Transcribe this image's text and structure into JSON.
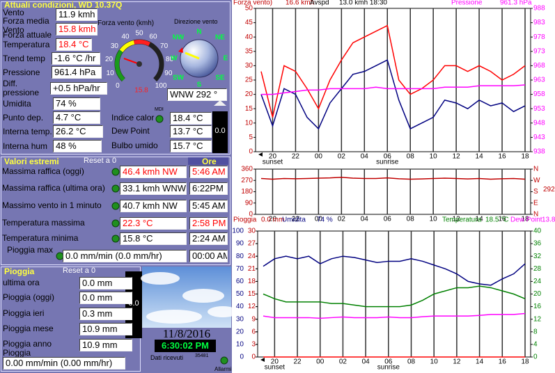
{
  "current": {
    "title": "Attuali condizioni, WD 10.37Q",
    "labels": [
      "Vento",
      "Forza media Vento",
      "Forza attuale",
      "Temperatura",
      "Trend temp",
      "Pressione",
      "Diff. pressione",
      "Umidita",
      "Punto dep.",
      "Interna temp.",
      "Interna hum"
    ],
    "values": [
      "11.9 kmh",
      "15.8 kmh",
      "18.4 °C",
      "-1.6 °C /hr",
      "961.4 hPa",
      "+0.5 hPa/hr",
      "74 %",
      "4.7 °C",
      "26.2 °C",
      "48 %"
    ],
    "gauge_title": "Forza vento (kmh)",
    "gauge_ticks": [
      0,
      10,
      20,
      30,
      40,
      50,
      60,
      70,
      80,
      90,
      100
    ],
    "gauge_value": "15.8",
    "compass_title": "Direzione vento",
    "compass_points": [
      "N",
      "NE",
      "E",
      "SE",
      "S",
      "SW",
      "W",
      "NW"
    ],
    "direction": "WNW 292 °",
    "mdi": "MDI",
    "extra_labels": [
      "Indice calor",
      "Dew Point",
      "Bulbo umido"
    ],
    "extra_values": [
      "18.4 °C",
      "13.7 °C",
      "15.7 °C"
    ],
    "rate_box": "0.0"
  },
  "extremes": {
    "title": "Valori estremi",
    "reset": "Reset a 0",
    "hours_title": "Ore",
    "labels": [
      "Massima raffica (oggi)",
      "Massima raffica (ultima ora)",
      "Massimo vento in 1 minuto",
      "Temperatura massima",
      "Temperatura minima",
      "Pioggia max"
    ],
    "values": [
      "46.4 kmh  NW",
      "33.1 kmh WNW",
      "40.7 kmh  NW",
      "22.3 °C",
      "15.8 °C",
      "0.0 mm/min (0.0 mm/hr)"
    ],
    "times": [
      "5:46 AM",
      "6:22PM",
      "5:45 AM",
      "2:58 PM",
      "2:24 AM",
      "00:00 AM"
    ]
  },
  "rain": {
    "title": "Pioggia",
    "reset": "Reset a 0",
    "labels": [
      "ultima ora",
      "Pioggia (oggi)",
      "Pioggia ieri",
      "Pioggia mese",
      "Pioggia anno Pioggia"
    ],
    "values": [
      "0.0 mm",
      "0.0 mm",
      "0.3 mm",
      "10.9 mm",
      "10.9 mm"
    ],
    "rate": "0.00 mm/min (0.00 mm/hr)",
    "box": "0.0"
  },
  "status": {
    "date": "11/8/2016",
    "time": "6:30:02 PM",
    "received_label": "Dati ricevuti",
    "received_count": "35481",
    "alarms": "Allarmi"
  },
  "chart_data": [
    {
      "type": "line",
      "header": [
        "Forza vento)",
        "16.6 kmh",
        "Avspd",
        "13.0 kmh 18:30",
        "Pressione",
        "961.3 hPa"
      ],
      "annotations": [
        "sunset",
        "sunrise"
      ],
      "categories": [
        null,
        "20",
        null,
        "22",
        null,
        "00",
        null,
        "02",
        null,
        "04",
        null,
        "06",
        null,
        "08",
        null,
        "10",
        null,
        "12",
        null,
        "14",
        null,
        "16",
        null,
        "18"
      ],
      "series": [
        {
          "name": "Forza vento",
          "color": "#ff0000",
          "values": [
            28,
            12,
            30,
            28,
            22,
            15,
            25,
            32,
            38,
            40,
            42,
            44,
            25,
            20,
            22,
            25,
            30,
            30,
            28,
            30,
            28,
            25,
            27,
            30
          ]
        },
        {
          "name": "Avspd",
          "color": "#000080",
          "values": [
            20,
            9,
            22,
            20,
            12,
            8,
            17,
            22,
            27,
            28,
            30,
            32,
            18,
            8,
            10,
            12,
            18,
            17,
            15,
            18,
            16,
            17,
            14,
            16
          ]
        },
        {
          "name": "Pressione",
          "color": "#ff00ff",
          "axis": "y2",
          "values": [
            958,
            958,
            958.5,
            959,
            959.5,
            959.5,
            960,
            960,
            960,
            960,
            960.5,
            960,
            960,
            960,
            960,
            960,
            960.5,
            960.5,
            960.5,
            961,
            961,
            961,
            961,
            961.3
          ]
        }
      ],
      "ylim": [
        0,
        50
      ],
      "yticks": [
        0,
        5,
        10,
        15,
        20,
        25,
        30,
        35,
        40,
        45,
        50
      ],
      "y2lim": [
        938,
        988
      ],
      "y2ticks": [
        938,
        943,
        948,
        953,
        958,
        963,
        968,
        973,
        978,
        983,
        988
      ],
      "grid": true
    },
    {
      "type": "line",
      "annotations": [
        "292"
      ],
      "categories": [
        null,
        "20",
        null,
        "22",
        null,
        "00",
        null,
        "02",
        null,
        "04",
        null,
        "06",
        null,
        "08",
        null,
        "10",
        null,
        "12",
        null,
        "14",
        null,
        "16",
        null,
        "18"
      ],
      "series": [
        {
          "name": "Direzione",
          "color": "#c00000",
          "values": [
            285,
            280,
            285,
            283,
            285,
            288,
            290,
            295,
            288,
            285,
            285,
            290,
            283,
            280,
            282,
            285,
            288,
            285,
            282,
            285,
            280,
            283,
            285,
            280
          ]
        }
      ],
      "ylim": [
        0,
        360
      ],
      "yticks": [
        0,
        90,
        180,
        270,
        360
      ],
      "y2lim": [
        0,
        360
      ],
      "y2ticks": [
        {
          "value": 0,
          "label": "N"
        },
        {
          "value": 90,
          "label": "E"
        },
        {
          "value": 180,
          "label": "S"
        },
        {
          "value": 270,
          "label": "W"
        },
        {
          "value": 360,
          "label": "N"
        }
      ],
      "grid": true
    },
    {
      "type": "line",
      "header": [
        "Pioggia",
        "0.0 mm",
        "Umidita",
        "74 %",
        "Temperatura",
        "18.5 °C",
        "Dew Point",
        "13.8"
      ],
      "annotations": [
        "sunset",
        "sunrise"
      ],
      "categories": [
        null,
        "20",
        null,
        "22",
        null,
        "00",
        null,
        "02",
        null,
        "04",
        null,
        "06",
        null,
        "08",
        null,
        "10",
        null,
        "12",
        null,
        "14",
        null,
        "16",
        null,
        "18"
      ],
      "series": [
        {
          "name": "Umidita",
          "color": "#000080",
          "values": [
            72,
            78,
            80,
            78,
            80,
            74,
            78,
            80,
            79,
            77,
            75,
            76,
            76,
            78,
            76,
            73,
            70,
            66,
            60,
            58,
            57,
            62,
            66,
            74
          ]
        },
        {
          "name": "Temperatura",
          "color": "#008000",
          "axis": "y2",
          "values": [
            20,
            18.5,
            17.5,
            17.5,
            17.5,
            17.5,
            17,
            17,
            16.5,
            16,
            16,
            16,
            16,
            16.5,
            18,
            20,
            21,
            22,
            22,
            22.5,
            22,
            21,
            20,
            18.5
          ]
        },
        {
          "name": "Dew Point",
          "color": "#ff00ff",
          "axis": "y2",
          "values": [
            13,
            12.5,
            12.5,
            12.5,
            12.5,
            12.3,
            12.5,
            12.7,
            12.5,
            12.5,
            12.5,
            12.7,
            12.5,
            12.5,
            12.8,
            13,
            13,
            13,
            13,
            13.2,
            13.5,
            13.5,
            13.5,
            13.8
          ]
        },
        {
          "name": "Pioggia",
          "color": "#ff0000",
          "axis": "y3",
          "values": [
            0,
            0,
            0,
            0,
            0,
            0,
            0,
            0,
            0,
            0,
            0,
            0,
            0,
            0,
            0,
            0,
            0,
            0,
            0,
            0,
            0,
            0,
            0,
            0
          ]
        }
      ],
      "ylim": [
        0,
        100
      ],
      "yticks": [
        0,
        10,
        20,
        30,
        40,
        50,
        60,
        70,
        80,
        90,
        100
      ],
      "y2lim": [
        0,
        40
      ],
      "y2ticks": [
        0,
        4,
        8,
        12,
        16,
        20,
        24,
        28,
        32,
        36,
        40
      ],
      "y3lim": [
        0,
        30
      ],
      "y3ticks": [
        0,
        3,
        6,
        9,
        12,
        15,
        18,
        21,
        24,
        27,
        30
      ],
      "grid": true
    }
  ]
}
